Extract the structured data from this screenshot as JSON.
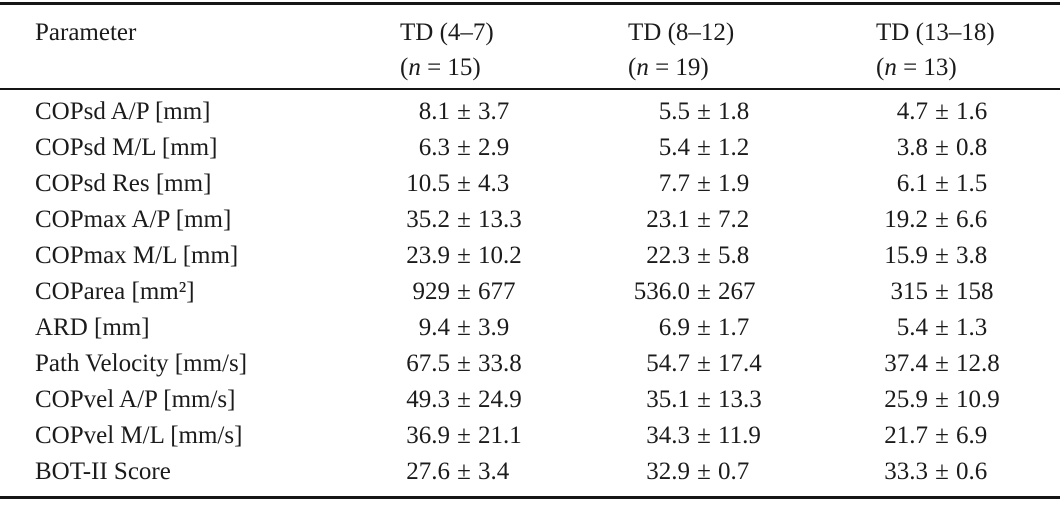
{
  "pm": "±",
  "table": {
    "header": {
      "param_label": "Parameter",
      "groups": [
        {
          "label": "TD (4–7)",
          "n_open": "(",
          "n_var": "n",
          "n_rest": " = 15)"
        },
        {
          "label": "TD (8–12)",
          "n_open": "(",
          "n_var": "n",
          "n_rest": " = 19)"
        },
        {
          "label": "TD (13–18)",
          "n_open": "(",
          "n_var": "n",
          "n_rest": " = 13)"
        }
      ]
    },
    "rows": [
      {
        "param": "COPsd A/P [mm]",
        "cells": [
          {
            "mean": "8.1",
            "sd": "3.7"
          },
          {
            "mean": "5.5",
            "sd": "1.8"
          },
          {
            "mean": "4.7",
            "sd": "1.6"
          }
        ]
      },
      {
        "param": "COPsd M/L [mm]",
        "cells": [
          {
            "mean": "6.3",
            "sd": "2.9"
          },
          {
            "mean": "5.4",
            "sd": "1.2"
          },
          {
            "mean": "3.8",
            "sd": "0.8"
          }
        ]
      },
      {
        "param": "COPsd Res [mm]",
        "cells": [
          {
            "mean": "10.5",
            "sd": "4.3"
          },
          {
            "mean": "7.7",
            "sd": "1.9"
          },
          {
            "mean": "6.1",
            "sd": "1.5"
          }
        ]
      },
      {
        "param": "COPmax A/P [mm]",
        "cells": [
          {
            "mean": "35.2",
            "sd": "13.3"
          },
          {
            "mean": "23.1",
            "sd": "7.2"
          },
          {
            "mean": "19.2",
            "sd": "6.6"
          }
        ]
      },
      {
        "param": "COPmax M/L [mm]",
        "cells": [
          {
            "mean": "23.9",
            "sd": "10.2"
          },
          {
            "mean": "22.3",
            "sd": "5.8"
          },
          {
            "mean": "15.9",
            "sd": "3.8"
          }
        ]
      },
      {
        "param": "COParea [mm²]",
        "cells": [
          {
            "mean": "929",
            "sd": "677"
          },
          {
            "mean": "536.0",
            "sd": "267"
          },
          {
            "mean": "315",
            "sd": "158"
          }
        ]
      },
      {
        "param": "ARD [mm]",
        "cells": [
          {
            "mean": "9.4",
            "sd": "3.9"
          },
          {
            "mean": "6.9",
            "sd": "1.7"
          },
          {
            "mean": "5.4",
            "sd": "1.3"
          }
        ]
      },
      {
        "param": "Path Velocity [mm/s]",
        "cells": [
          {
            "mean": "67.5",
            "sd": "33.8"
          },
          {
            "mean": "54.7",
            "sd": "17.4"
          },
          {
            "mean": "37.4",
            "sd": "12.8"
          }
        ]
      },
      {
        "param": "COPvel A/P [mm/s]",
        "cells": [
          {
            "mean": "49.3",
            "sd": "24.9"
          },
          {
            "mean": "35.1",
            "sd": "13.3"
          },
          {
            "mean": "25.9",
            "sd": "10.9"
          }
        ]
      },
      {
        "param": "COPvel M/L [mm/s]",
        "cells": [
          {
            "mean": "36.9",
            "sd": "21.1"
          },
          {
            "mean": "34.3",
            "sd": "11.9"
          },
          {
            "mean": "21.7",
            "sd": "6.9"
          }
        ]
      },
      {
        "param": "BOT-II Score",
        "cells": [
          {
            "mean": "27.6",
            "sd": "3.4"
          },
          {
            "mean": "32.9",
            "sd": "0.7"
          },
          {
            "mean": "33.3",
            "sd": "0.6"
          }
        ]
      }
    ]
  }
}
